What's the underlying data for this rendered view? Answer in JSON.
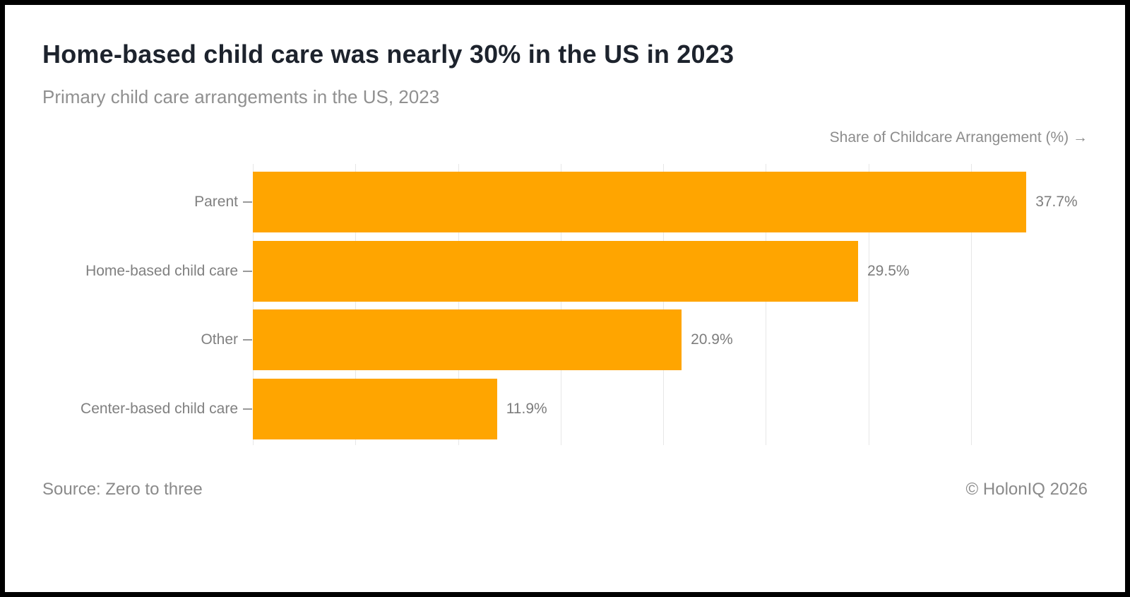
{
  "frame": {
    "background": "#ffffff",
    "border_color": "#000000"
  },
  "header": {
    "title": "Home-based child care was nearly 30% in the US in 2023",
    "subtitle": "Primary child care arrangements in the US, 2023"
  },
  "chart_data": {
    "type": "bar",
    "orientation": "horizontal",
    "title": "Home-based child care was nearly 30% in the US in 2023",
    "subtitle": "Primary child care arrangements in the US, 2023",
    "axis_label": "Share of Childcare Arrangement (%) →",
    "categories": [
      "Parent",
      "Home-based child care",
      "Other",
      "Center-based child care"
    ],
    "values": [
      37.7,
      29.5,
      20.9,
      11.9
    ],
    "value_labels": [
      "37.7%",
      "29.5%",
      "20.9%",
      "11.9%"
    ],
    "xlim": [
      0,
      40
    ],
    "gridlines_pct": [
      0,
      5,
      10,
      15,
      20,
      25,
      30,
      35
    ],
    "grid": true,
    "legend": false,
    "bar_color": "#FFA500",
    "gridline_color": "#e7e7e7",
    "label_color": "#808080"
  },
  "footer": {
    "source": "Source: Zero to three",
    "copyright": "© HolonIQ 2026"
  }
}
